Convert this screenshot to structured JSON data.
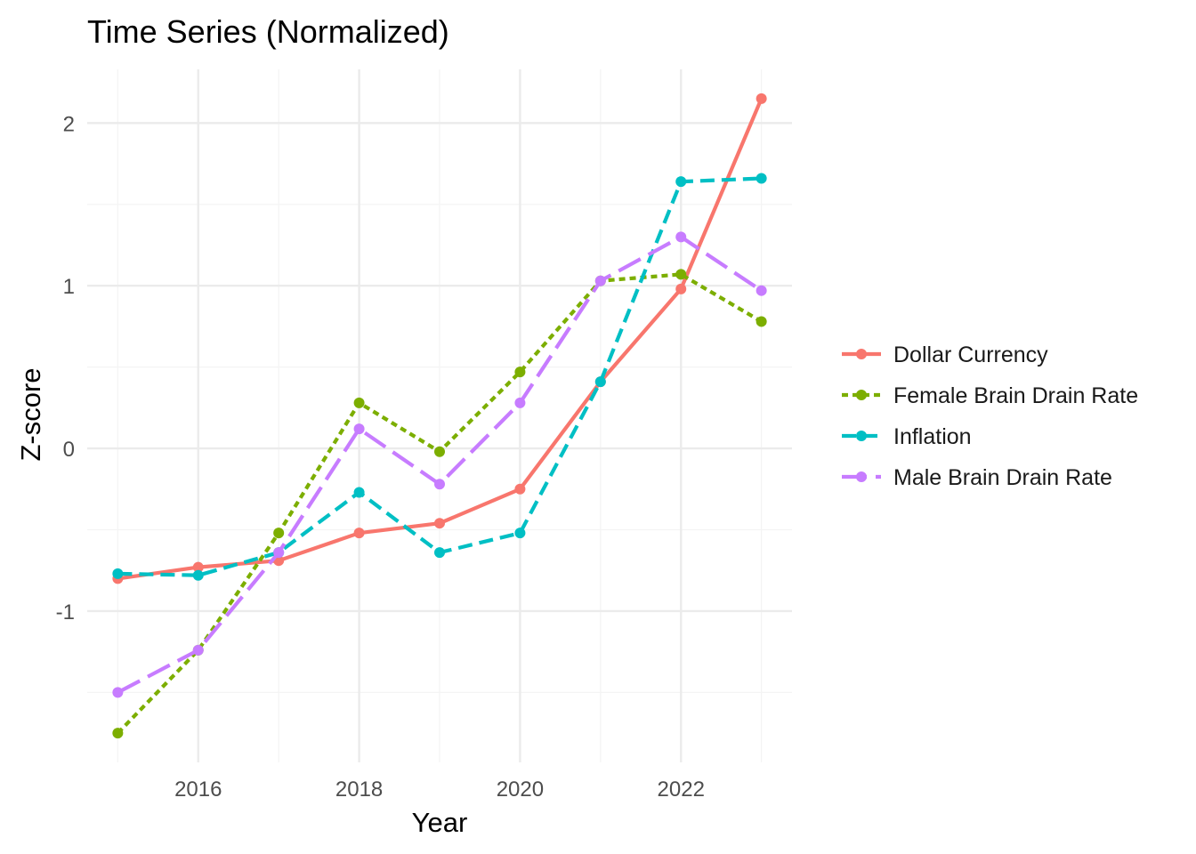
{
  "chart_data": {
    "type": "line",
    "title": "Time Series (Normalized)",
    "xlabel": "Year",
    "ylabel": "Z-score",
    "x": [
      2015,
      2016,
      2017,
      2018,
      2019,
      2020,
      2021,
      2022,
      2023
    ],
    "xlim": [
      2014.62,
      2023.38
    ],
    "ylim": [
      -1.93,
      2.33
    ],
    "x_ticks": [
      2016,
      2018,
      2020,
      2022
    ],
    "y_ticks": [
      -1,
      0,
      1,
      2
    ],
    "x_tick_labels": [
      "2016",
      "2018",
      "2020",
      "2022"
    ],
    "y_tick_labels": [
      "-1",
      "0",
      "1",
      "2"
    ],
    "grid": true,
    "legend_position": "right",
    "series": [
      {
        "name": "Dollar Currency",
        "color": "#F8766D",
        "dash": "solid",
        "values": [
          -0.8,
          -0.73,
          -0.69,
          -0.52,
          -0.46,
          -0.25,
          0.41,
          0.98,
          2.15
        ]
      },
      {
        "name": "Female Brain Drain Rate",
        "color": "#7CAE00",
        "dash": "dotted",
        "values": [
          -1.75,
          -1.24,
          -0.52,
          0.28,
          -0.02,
          0.47,
          1.03,
          1.07,
          0.78
        ]
      },
      {
        "name": "Inflation",
        "color": "#00BFC4",
        "dash": "dashed",
        "values": [
          -0.77,
          -0.78,
          -0.64,
          -0.27,
          -0.64,
          -0.52,
          0.41,
          1.64,
          1.66
        ]
      },
      {
        "name": "Male Brain Drain Rate",
        "color": "#C77CFF",
        "dash": "longdash",
        "values": [
          -1.5,
          -1.24,
          -0.64,
          0.12,
          -0.22,
          0.28,
          1.03,
          1.3,
          0.97
        ]
      }
    ]
  }
}
